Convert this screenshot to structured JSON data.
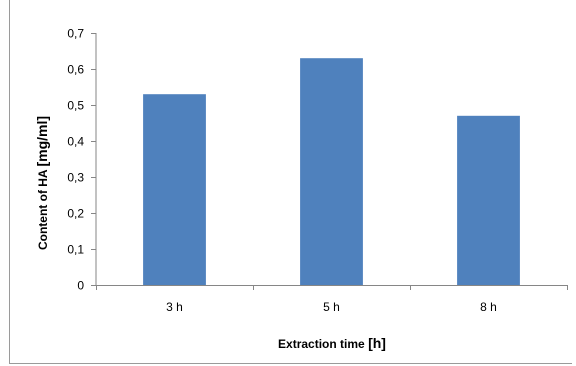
{
  "chart_data": {
    "type": "bar",
    "title": "",
    "categories": [
      "3 h",
      "5 h",
      "8 h"
    ],
    "values": [
      0.53,
      0.63,
      0.47
    ],
    "xlabel_text": "Extraction time ",
    "xlabel_unit": "[h]",
    "ylabel_text": "Content of HA ",
    "ylabel_unit": "[mg/ml]",
    "ylim": [
      0,
      0.7
    ],
    "yticks": [
      "0",
      "0,1",
      "0,2",
      "0,3",
      "0,4",
      "0,5",
      "0,6",
      "0,7"
    ],
    "grid": false,
    "legend": "none",
    "bar_color": "#4f81bd",
    "axis_color": "#868686"
  }
}
